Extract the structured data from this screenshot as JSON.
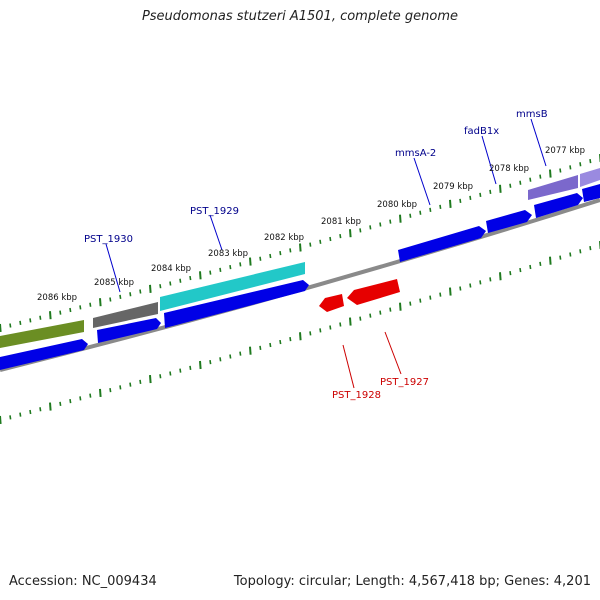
{
  "title": "Pseudomonas stutzeri A1501, complete genome",
  "footer": {
    "accession": "Accession: NC_009434",
    "topology": "Topology: circular; Length: 4,567,418 bp; Genes: 4,201"
  },
  "colors": {
    "backbone": "#8c8c8c",
    "tick": "#1f7a1f",
    "forward_gene": "#0000e6",
    "reverse_gene": "#e60000",
    "label_forward": "#00008b",
    "label_reverse": "#cc0000",
    "label_line_forward": "#0000cc",
    "label_line_reverse": "#cc0000"
  },
  "scale_labels": [
    "2077 kbp",
    "2078 kbp",
    "2079 kbp",
    "2080 kbp",
    "2081 kbp",
    "2082 kbp",
    "2083 kbp",
    "2084 kbp",
    "2085 kbp",
    "2086 kbp"
  ],
  "gene_labels": {
    "mmsB": "mmsB",
    "fadB1x": "fadB1x",
    "mmsA2": "mmsA-2",
    "pst1929": "PST_1929",
    "pst1930": "PST_1930",
    "pst1928": "PST_1928",
    "pst1927": "PST_1927"
  },
  "cog_colors": {
    "olive": "#6b8e23",
    "gray": "#666666",
    "cyan": "#22c8c8",
    "purple": "#7b68cc"
  }
}
